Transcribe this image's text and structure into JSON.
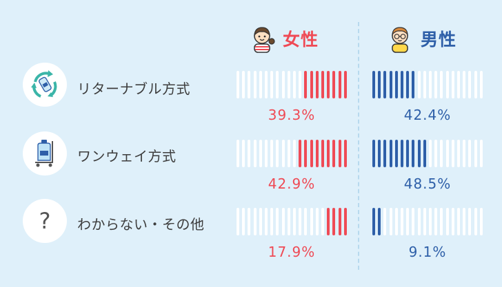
{
  "colors": {
    "female": "#ef4a55",
    "male": "#2e5fa8",
    "empty": "#ffffff",
    "text": "#3d3d3d"
  },
  "headers": {
    "female": "女性",
    "male": "男性"
  },
  "chart_data": {
    "type": "bar",
    "categories": [
      "リターナブル方式",
      "ワンウェイ方式",
      "わからない・その他"
    ],
    "series": [
      {
        "name": "女性",
        "values": [
          39.3,
          42.9,
          17.9
        ],
        "labels": [
          "39.3%",
          "42.9%",
          "17.9%"
        ]
      },
      {
        "name": "男性",
        "values": [
          42.4,
          48.5,
          9.1
        ],
        "labels": [
          "42.4%",
          "48.5%",
          "9.1%"
        ]
      }
    ],
    "unit": "%",
    "ylim": [
      0,
      100
    ]
  },
  "icons": [
    "recycle-bottle-icon",
    "water-server-cart-icon",
    "question-icon"
  ],
  "question_mark": "?"
}
